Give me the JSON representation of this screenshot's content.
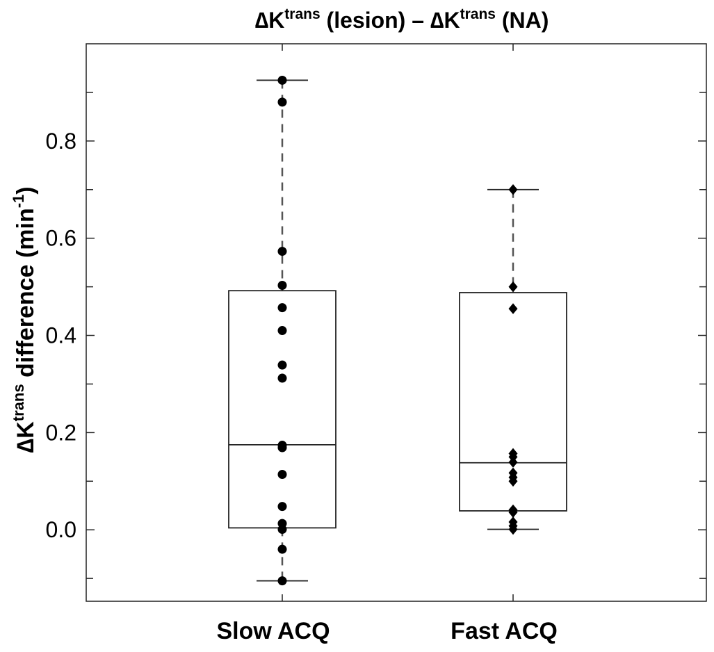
{
  "chart_data": {
    "type": "box",
    "title": {
      "delta": "∆",
      "k": "K",
      "trans": "trans",
      "lesion": " (lesion) – ",
      "na": " (NA)"
    },
    "ylabel": {
      "delta": "∆",
      "k": "K",
      "trans": "trans",
      "rest": " difference (min",
      "exp": "-1",
      "close": ")"
    },
    "ylim": [
      -0.147,
      1.0
    ],
    "yticks": [
      0.0,
      0.2,
      0.4,
      0.6,
      0.8
    ],
    "ytick_labels": [
      "0.0",
      "0.2",
      "0.4",
      "0.6",
      "0.8"
    ],
    "minor_yticks": [
      -0.1,
      0.1,
      0.3,
      0.5,
      0.7,
      0.9
    ],
    "categories": [
      "Slow ACQ",
      "Fast ACQ"
    ],
    "series": [
      {
        "name": "Slow ACQ",
        "marker": "circle",
        "q1": 0.004,
        "median": 0.175,
        "q3": 0.492,
        "whisker_low": -0.105,
        "whisker_high": 0.925,
        "points": [
          0.925,
          0.88,
          0.573,
          0.503,
          0.457,
          0.41,
          0.339,
          0.312,
          0.174,
          0.169,
          0.114,
          0.048,
          0.013,
          0.001,
          -0.04,
          -0.105
        ]
      },
      {
        "name": "Fast ACQ",
        "marker": "diamond",
        "q1": 0.039,
        "median": 0.138,
        "q3": 0.488,
        "whisker_low": 0.001,
        "whisker_high": 0.7,
        "points": [
          0.7,
          0.5,
          0.455,
          0.157,
          0.15,
          0.139,
          0.117,
          0.108,
          0.1,
          0.041,
          0.036,
          0.016,
          0.008,
          0.001
        ]
      }
    ],
    "colors": {
      "marker": "#000000",
      "box": "#222222",
      "whisker": "#555555",
      "axes": "#222222"
    }
  }
}
